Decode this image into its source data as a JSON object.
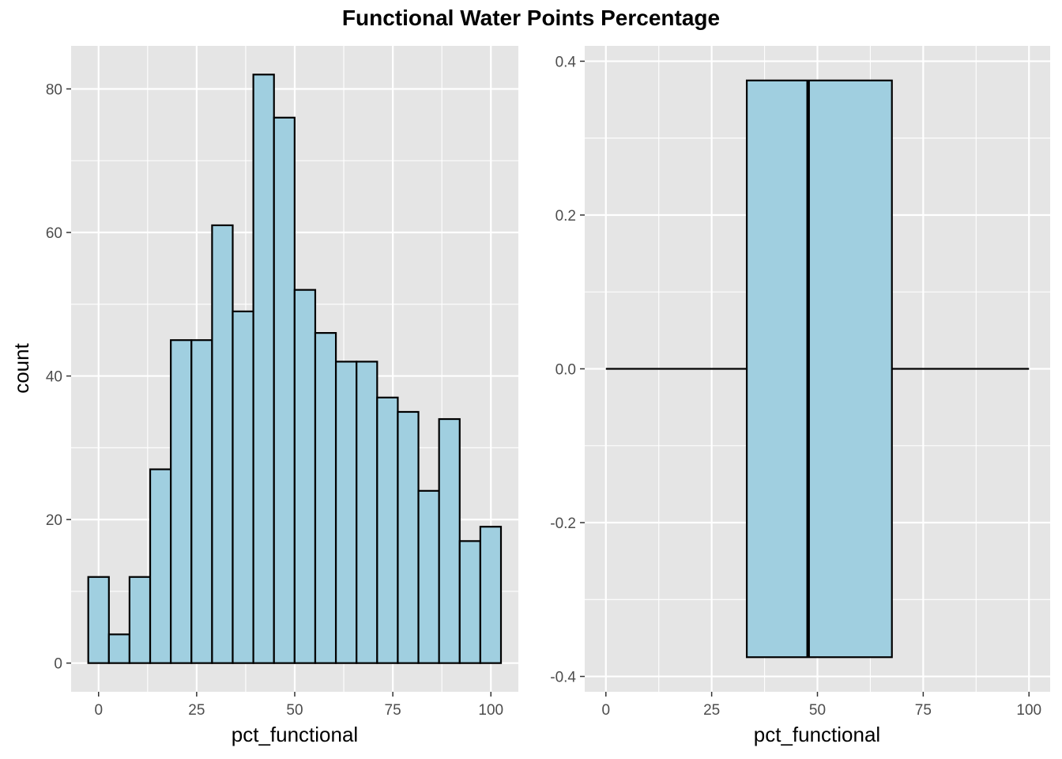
{
  "title": "Functional Water Points Percentage",
  "colors": {
    "panel_bg": "#e5e5e5",
    "grid": "#ffffff",
    "fill": "#a0cfe0",
    "stroke": "#000000"
  },
  "chart_data": [
    {
      "type": "bar",
      "subtype": "histogram",
      "xlabel": "pct_functional",
      "ylabel": "count",
      "xlim": [
        -7,
        107
      ],
      "ylim": [
        -4,
        86
      ],
      "x_ticks": [
        {
          "value": 0,
          "label": "0"
        },
        {
          "value": 25,
          "label": "25"
        },
        {
          "value": 50,
          "label": "50"
        },
        {
          "value": 75,
          "label": "75"
        },
        {
          "value": 100,
          "label": "100"
        }
      ],
      "y_ticks": [
        {
          "value": 0,
          "label": "0"
        },
        {
          "value": 20,
          "label": "20"
        },
        {
          "value": 40,
          "label": "40"
        },
        {
          "value": 60,
          "label": "60"
        },
        {
          "value": 80,
          "label": "80"
        }
      ],
      "bin_width": 5.26,
      "bin_start": -2.63,
      "values": [
        12,
        4,
        12,
        27,
        45,
        45,
        61,
        49,
        82,
        76,
        52,
        46,
        42,
        42,
        37,
        35,
        24,
        34,
        17,
        19
      ]
    },
    {
      "type": "box",
      "xlabel": "pct_functional",
      "xlim": [
        -5,
        105
      ],
      "ylim": [
        -0.42,
        0.42
      ],
      "x_ticks": [
        {
          "value": 0,
          "label": "0"
        },
        {
          "value": 25,
          "label": "25"
        },
        {
          "value": 50,
          "label": "50"
        },
        {
          "value": 75,
          "label": "75"
        },
        {
          "value": 100,
          "label": "100"
        }
      ],
      "y_ticks": [
        {
          "value": 0.4,
          "label": "0.4"
        },
        {
          "value": 0.2,
          "label": "0.2"
        },
        {
          "value": 0.0,
          "label": "0.0"
        },
        {
          "value": -0.2,
          "label": "-0.2"
        },
        {
          "value": -0.4,
          "label": "-0.4"
        }
      ],
      "whisker_low": 0,
      "q1": 33.3,
      "median": 47.8,
      "q3": 67.6,
      "whisker_high": 100,
      "box_ymin": -0.375,
      "box_ymax": 0.375
    }
  ]
}
